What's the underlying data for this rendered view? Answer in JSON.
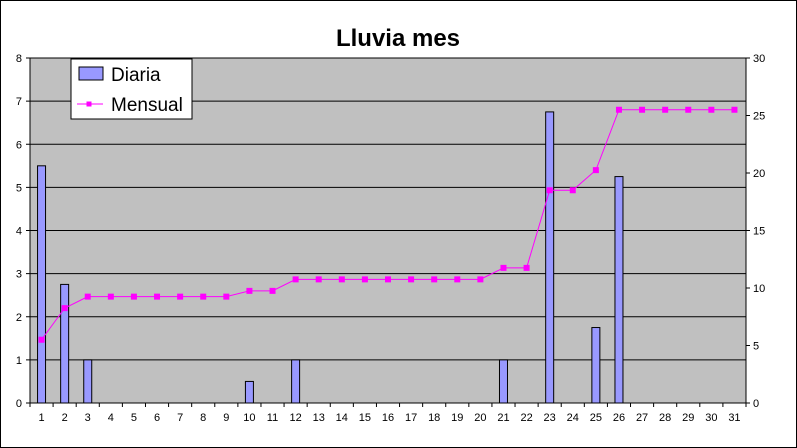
{
  "chart_data": {
    "type": "bar",
    "title": "Lluvia mes",
    "categories": [
      "1",
      "2",
      "3",
      "4",
      "5",
      "6",
      "7",
      "8",
      "9",
      "10",
      "11",
      "12",
      "13",
      "14",
      "15",
      "16",
      "17",
      "18",
      "19",
      "20",
      "21",
      "22",
      "23",
      "24",
      "25",
      "26",
      "27",
      "28",
      "29",
      "30",
      "31"
    ],
    "series": [
      {
        "name": "Diaria",
        "type": "bar",
        "axis": "left",
        "color": "#9999ff",
        "values": [
          5.5,
          2.75,
          1,
          0,
          0,
          0,
          0,
          0,
          0,
          0.5,
          0,
          1,
          0,
          0,
          0,
          0,
          0,
          0,
          0,
          0,
          1,
          0,
          6.75,
          0,
          1.75,
          5.25,
          0,
          0,
          0,
          0,
          0
        ]
      },
      {
        "name": "Mensual",
        "type": "line",
        "axis": "right",
        "color": "#ff00ff",
        "values": [
          5.5,
          8.25,
          9.25,
          9.25,
          9.25,
          9.25,
          9.25,
          9.25,
          9.25,
          9.75,
          9.75,
          10.75,
          10.75,
          10.75,
          10.75,
          10.75,
          10.75,
          10.75,
          10.75,
          10.75,
          11.75,
          11.75,
          18.5,
          18.5,
          20.25,
          25.5,
          25.5,
          25.5,
          25.5,
          25.5,
          25.5
        ]
      }
    ],
    "y_left": {
      "min": 0,
      "max": 8,
      "step": 1,
      "ticks": [
        "0",
        "1",
        "2",
        "3",
        "4",
        "5",
        "6",
        "7",
        "8"
      ]
    },
    "y_right": {
      "min": 0,
      "max": 30,
      "step": 5,
      "ticks": [
        "0",
        "5",
        "10",
        "15",
        "20",
        "25",
        "30"
      ]
    },
    "grid": true,
    "plot_background": "#c0c0c0",
    "legend_position": "top-left"
  }
}
